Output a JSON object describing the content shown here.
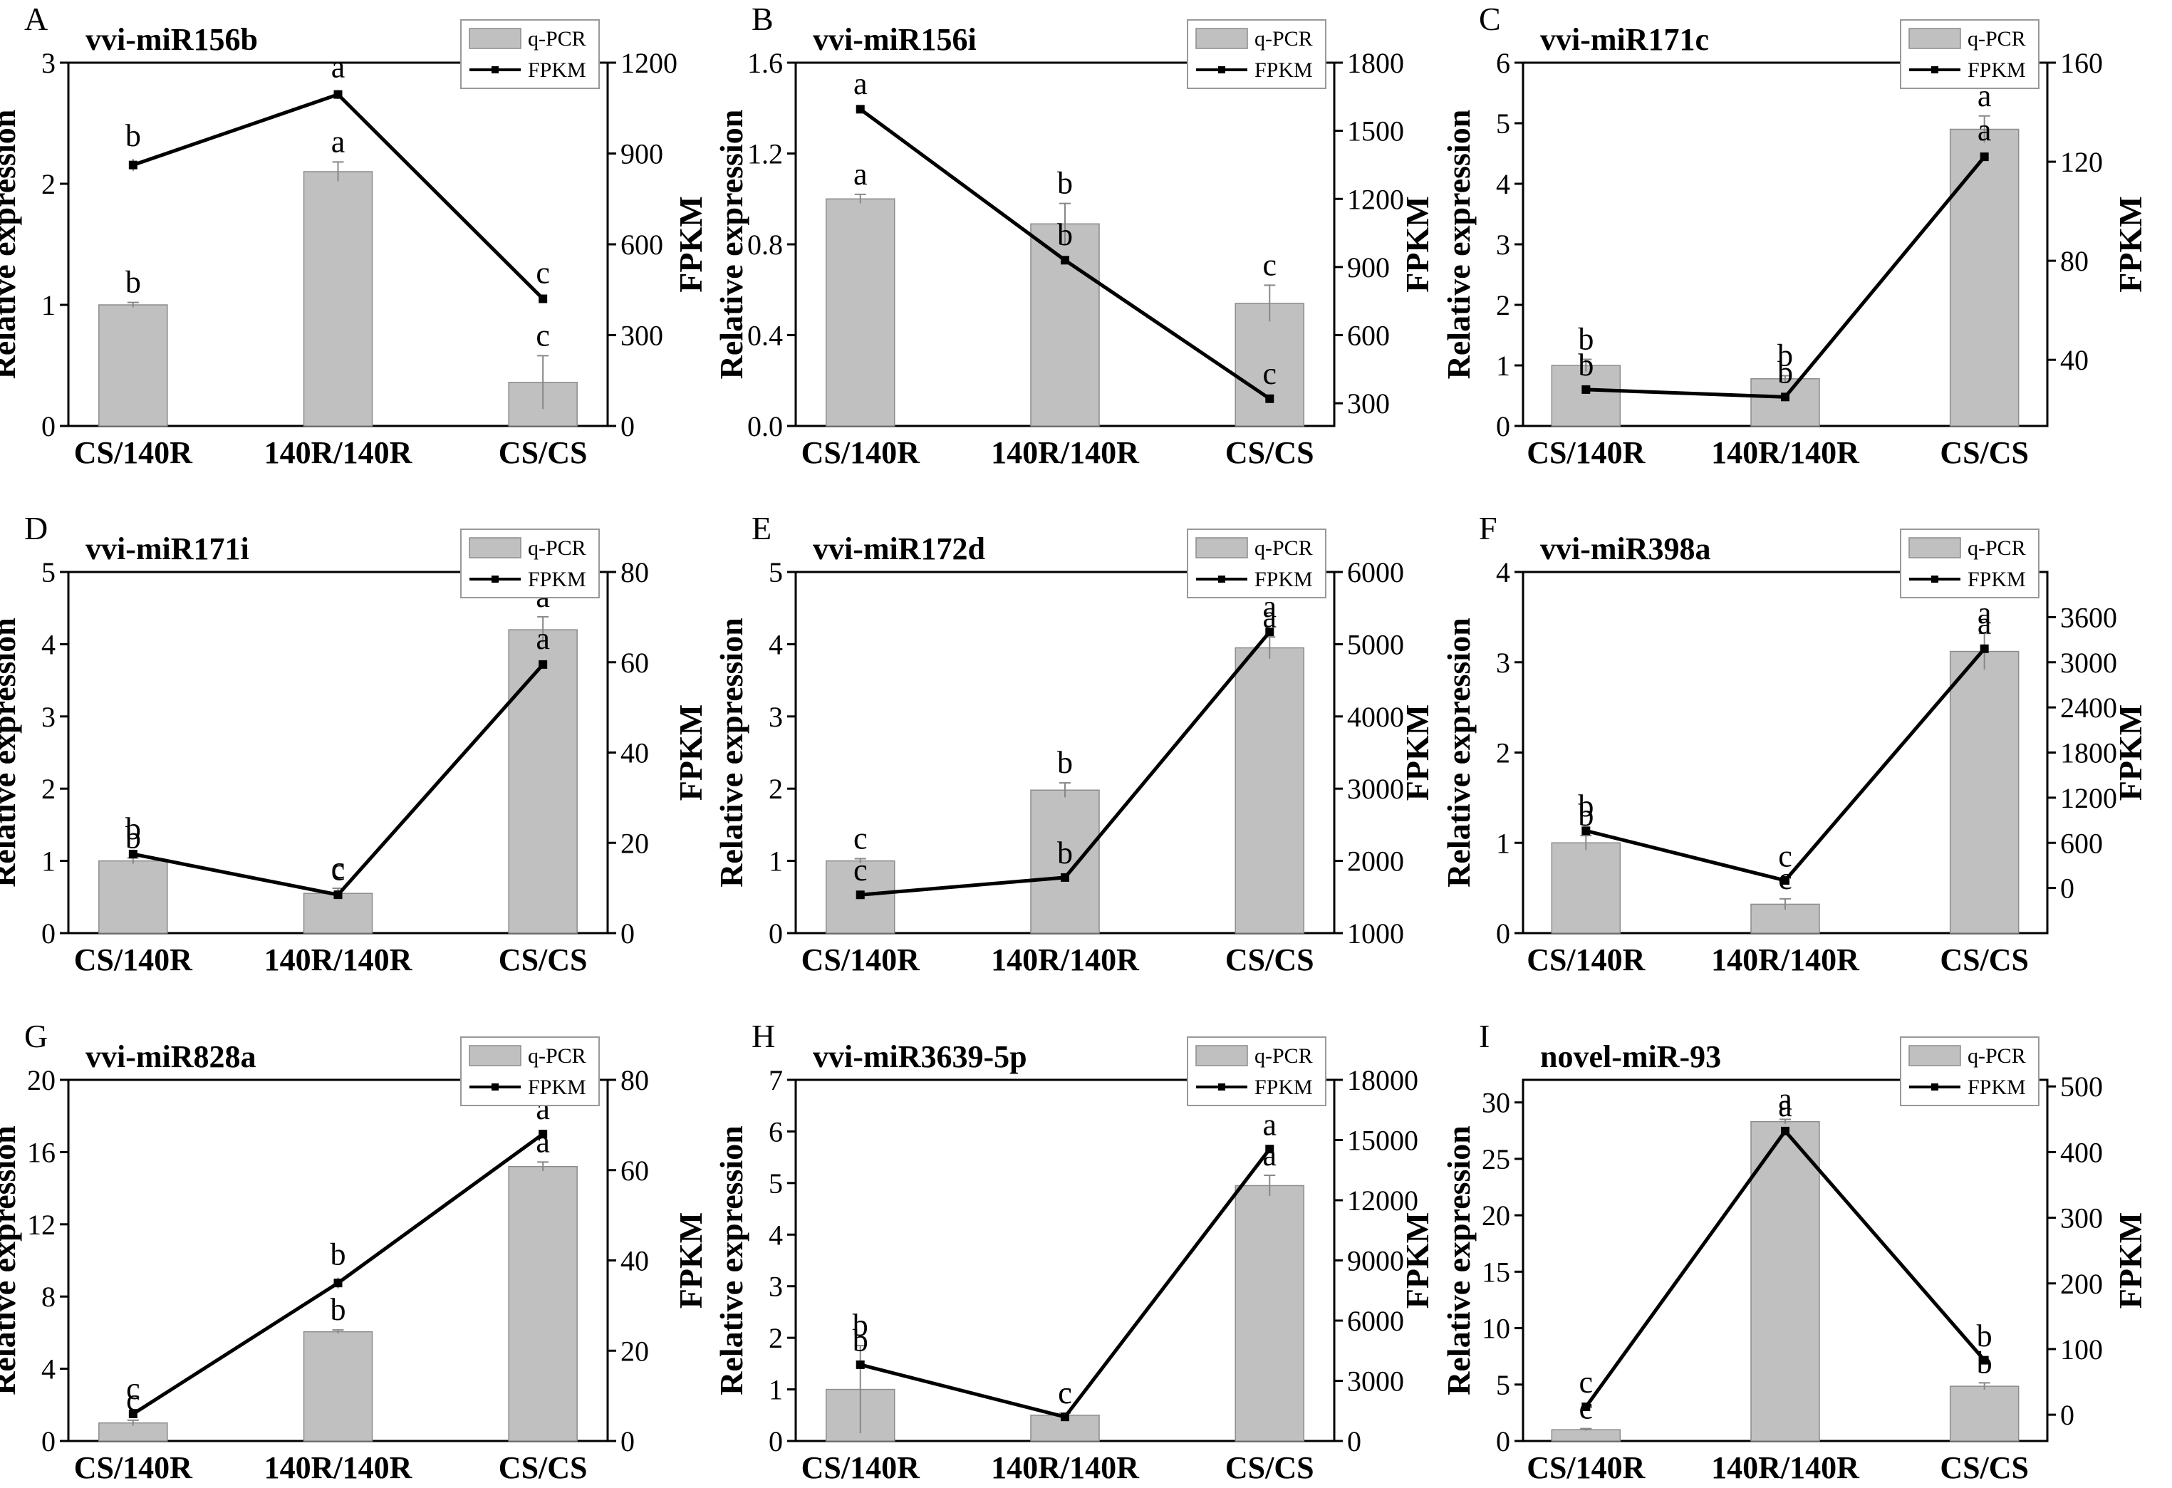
{
  "colors": {
    "bar_fill": "#c0c0c0",
    "bar_stroke": "#8c8c8c",
    "line": "#000000",
    "error_bar": "#888888"
  },
  "legend": {
    "bar_label": "q-PCR",
    "line_label": "FPKM"
  },
  "axis_titles": {
    "left": "Relative expression",
    "right": "FPKM"
  },
  "chart_data": [
    {
      "type": "bar+line",
      "letter": "A",
      "title": "vvi-miR156b",
      "categories": [
        "CS/140R",
        "140R/140R",
        "CS/CS"
      ],
      "left_axis": {
        "label": "Relative expression",
        "min": 0,
        "max": 3,
        "ticks": [
          "0",
          "1",
          "2",
          "3"
        ]
      },
      "right_axis": {
        "label": "FPKM",
        "min": 0,
        "max": 1200,
        "ticks": [
          "0",
          "300",
          "600",
          "900",
          "1200"
        ]
      },
      "series": [
        {
          "name": "q-PCR",
          "kind": "bar",
          "values": [
            1.0,
            2.1,
            0.36
          ],
          "errors": [
            0.02,
            0.08,
            0.22
          ],
          "labels": [
            "b",
            "a",
            "c"
          ]
        },
        {
          "name": "FPKM",
          "kind": "line",
          "values": [
            862,
            1095,
            420
          ],
          "errors": [
            20,
            15,
            10
          ],
          "labels": [
            "b",
            "a",
            "c"
          ]
        }
      ]
    },
    {
      "type": "bar+line",
      "letter": "B",
      "title": "vvi-miR156i",
      "categories": [
        "CS/140R",
        "140R/140R",
        "CS/CS"
      ],
      "left_axis": {
        "label": "Relative expression",
        "min": 0,
        "max": 1.6,
        "ticks": [
          "0.0",
          "0.4",
          "0.8",
          "1.2",
          "1.6"
        ]
      },
      "right_axis": {
        "label": "FPKM",
        "min": 200,
        "max": 1800,
        "ticks": [
          "300",
          "600",
          "900",
          "1200",
          "1500",
          "1800"
        ]
      },
      "series": [
        {
          "name": "q-PCR",
          "kind": "bar",
          "values": [
            1.0,
            0.89,
            0.54
          ],
          "errors": [
            0.02,
            0.09,
            0.08
          ],
          "labels": [
            "a",
            "b",
            "c"
          ]
        },
        {
          "name": "FPKM",
          "kind": "line",
          "values": [
            1595,
            930,
            320
          ],
          "errors": [
            10,
            10,
            8
          ],
          "labels": [
            "a",
            "b",
            "c"
          ]
        }
      ]
    },
    {
      "type": "bar+line",
      "letter": "C",
      "title": "vvi-miR171c",
      "categories": [
        "CS/140R",
        "140R/140R",
        "CS/CS"
      ],
      "left_axis": {
        "label": "Relative expression",
        "min": 0,
        "max": 6,
        "ticks": [
          "0",
          "1",
          "2",
          "3",
          "4",
          "5",
          "6"
        ]
      },
      "right_axis": {
        "label": "FPKM",
        "min": 13.3,
        "max": 160,
        "ticks": [
          "40",
          "80",
          "120",
          "160"
        ]
      },
      "series": [
        {
          "name": "q-PCR",
          "kind": "bar",
          "values": [
            1.0,
            0.78,
            4.9
          ],
          "errors": [
            0.1,
            0.05,
            0.22
          ],
          "labels": [
            "b",
            "b",
            "a"
          ]
        },
        {
          "name": "FPKM",
          "kind": "line",
          "values": [
            28,
            25,
            122
          ],
          "errors": [
            0.5,
            0.5,
            1.5
          ],
          "labels": [
            "b",
            "b",
            "a"
          ]
        }
      ]
    },
    {
      "type": "bar+line",
      "letter": "D",
      "title": "vvi-miR171i",
      "categories": [
        "CS/140R",
        "140R/140R",
        "CS/CS"
      ],
      "left_axis": {
        "label": "Relative expression",
        "min": 0,
        "max": 5,
        "ticks": [
          "0",
          "1",
          "2",
          "3",
          "4",
          "5"
        ]
      },
      "right_axis": {
        "label": "FPKM",
        "min": 0,
        "max": 80,
        "ticks": [
          "0",
          "20",
          "40",
          "60",
          "80"
        ]
      },
      "series": [
        {
          "name": "q-PCR",
          "kind": "bar",
          "values": [
            1.0,
            0.55,
            4.2
          ],
          "errors": [
            0.04,
            0.07,
            0.18
          ],
          "labels": [
            "b",
            "c",
            "a"
          ]
        },
        {
          "name": "FPKM",
          "kind": "line",
          "values": [
            17.5,
            8.5,
            59.5
          ],
          "errors": [
            0.5,
            0.4,
            0.6
          ],
          "labels": [
            "b",
            "c",
            "a"
          ]
        }
      ]
    },
    {
      "type": "bar+line",
      "letter": "E",
      "title": "vvi-miR172d",
      "categories": [
        "CS/140R",
        "140R/140R",
        "CS/CS"
      ],
      "left_axis": {
        "label": "Relative expression",
        "min": 0,
        "max": 5,
        "ticks": [
          "0",
          "1",
          "2",
          "3",
          "4",
          "5"
        ]
      },
      "right_axis": {
        "label": "FPKM",
        "min": 1000,
        "max": 6000,
        "ticks": [
          "1000",
          "2000",
          "3000",
          "4000",
          "5000",
          "6000"
        ]
      },
      "series": [
        {
          "name": "q-PCR",
          "kind": "bar",
          "values": [
            1.0,
            1.98,
            3.95
          ],
          "errors": [
            0.03,
            0.1,
            0.15
          ],
          "labels": [
            "c",
            "b",
            "a"
          ]
        },
        {
          "name": "FPKM",
          "kind": "line",
          "values": [
            1530,
            1770,
            5170
          ],
          "errors": [
            20,
            20,
            30
          ],
          "labels": [
            "c",
            "b",
            "a"
          ]
        }
      ]
    },
    {
      "type": "bar+line",
      "letter": "F",
      "title": "vvi-miR398a",
      "categories": [
        "CS/140R",
        "140R/140R",
        "CS/CS"
      ],
      "left_axis": {
        "label": "Relative expression",
        "min": 0,
        "max": 4,
        "ticks": [
          "0",
          "1",
          "2",
          "3",
          "4"
        ]
      },
      "right_axis": {
        "label": "FPKM",
        "min": -600,
        "max": 4200,
        "ticks": [
          "0",
          "600",
          "1200",
          "1800",
          "2400",
          "3000",
          "3600"
        ]
      },
      "series": [
        {
          "name": "q-PCR",
          "kind": "bar",
          "values": [
            1.0,
            0.32,
            3.12
          ],
          "errors": [
            0.08,
            0.06,
            0.2
          ],
          "labels": [
            "b",
            "c",
            "a"
          ]
        },
        {
          "name": "FPKM",
          "kind": "line",
          "values": [
            760,
            100,
            3180
          ],
          "errors": [
            20,
            15,
            30
          ],
          "labels": [
            "b",
            "c",
            "a"
          ]
        }
      ]
    },
    {
      "type": "bar+line",
      "letter": "G",
      "title": "vvi-miR828a",
      "categories": [
        "CS/140R",
        "140R/140R",
        "CS/CS"
      ],
      "left_axis": {
        "label": "Relative expression",
        "min": 0,
        "max": 20,
        "ticks": [
          "0",
          "4",
          "8",
          "12",
          "16",
          "20"
        ]
      },
      "right_axis": {
        "label": "FPKM",
        "min": 0,
        "max": 80,
        "ticks": [
          "0",
          "20",
          "40",
          "60",
          "80"
        ]
      },
      "series": [
        {
          "name": "q-PCR",
          "kind": "bar",
          "values": [
            1.0,
            6.05,
            15.2
          ],
          "errors": [
            0.15,
            0.1,
            0.25
          ],
          "labels": [
            "c",
            "b",
            "a"
          ]
        },
        {
          "name": "FPKM",
          "kind": "line",
          "values": [
            6.0,
            35.0,
            68.0
          ],
          "errors": [
            0.5,
            1.2,
            0.5
          ],
          "labels": [
            "c",
            "b",
            "a"
          ]
        }
      ]
    },
    {
      "type": "bar+line",
      "letter": "H",
      "title": "vvi-miR3639-5p",
      "categories": [
        "CS/140R",
        "140R/140R",
        "CS/CS"
      ],
      "left_axis": {
        "label": "Relative expression",
        "min": 0,
        "max": 7,
        "ticks": [
          "0",
          "1",
          "2",
          "3",
          "4",
          "5",
          "6",
          "7"
        ]
      },
      "right_axis": {
        "label": "FPKM",
        "min": 0,
        "max": 18000,
        "ticks": [
          "0",
          "3000",
          "6000",
          "9000",
          "12000",
          "15000",
          "18000"
        ]
      },
      "series": [
        {
          "name": "q-PCR",
          "kind": "bar",
          "values": [
            1.0,
            0.5,
            4.95
          ],
          "errors": [
            0.85,
            0.04,
            0.2
          ],
          "labels": [
            "b",
            "c",
            "a"
          ]
        },
        {
          "name": "FPKM",
          "kind": "line",
          "values": [
            3800,
            1200,
            14550
          ],
          "errors": [
            50,
            40,
            60
          ],
          "labels": [
            "b",
            "c",
            "a"
          ]
        }
      ]
    },
    {
      "type": "bar+line",
      "letter": "I",
      "title": "novel-miR-93",
      "categories": [
        "CS/140R",
        "140R/140R",
        "CS/CS"
      ],
      "left_axis": {
        "label": "Relative expression",
        "min": 0,
        "max": 32,
        "ticks": [
          "0",
          "5",
          "10",
          "15",
          "20",
          "25",
          "30"
        ]
      },
      "right_axis": {
        "label": "FPKM",
        "min": -40,
        "max": 510,
        "ticks": [
          "0",
          "100",
          "200",
          "300",
          "400",
          "500"
        ]
      },
      "series": [
        {
          "name": "q-PCR",
          "kind": "bar",
          "values": [
            1.0,
            28.3,
            4.85
          ],
          "errors": [
            0.1,
            0.2,
            0.3
          ],
          "labels": [
            "c",
            "a",
            "b"
          ]
        },
        {
          "name": "FPKM",
          "kind": "line",
          "values": [
            12,
            432,
            83
          ],
          "errors": [
            2,
            3,
            2
          ],
          "labels": [
            "c",
            "a",
            "b"
          ]
        }
      ]
    }
  ]
}
